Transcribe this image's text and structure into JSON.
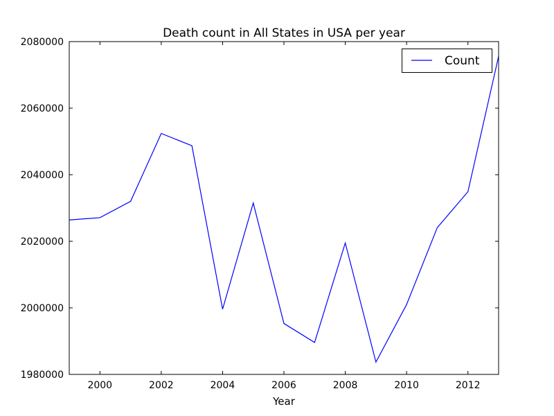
{
  "chart_data": {
    "type": "line",
    "title": "Death count in All States in USA per year",
    "xlabel": "Year",
    "ylabel": "",
    "xlim": [
      1999,
      2013
    ],
    "ylim": [
      1980000,
      2080000
    ],
    "xticks": [
      2000,
      2002,
      2004,
      2006,
      2008,
      2010,
      2012
    ],
    "xtick_labels": [
      "2000",
      "2002",
      "2004",
      "2006",
      "2008",
      "2010",
      "2012"
    ],
    "yticks": [
      1980000,
      2000000,
      2020000,
      2040000,
      2060000,
      2080000
    ],
    "ytick_labels": [
      "1980000",
      "2000000",
      "2020000",
      "2040000",
      "2060000",
      "2080000"
    ],
    "legend_position": "top-right",
    "grid": false,
    "series": [
      {
        "name": "Count",
        "color": "#0000ff",
        "x": [
          1999,
          2000,
          2001,
          2002,
          2003,
          2004,
          2005,
          2006,
          2007,
          2008,
          2009,
          2010,
          2011,
          2012,
          2013
        ],
        "y": [
          2026400,
          2027100,
          2032000,
          2052400,
          2048700,
          1999600,
          2031500,
          1995300,
          1989600,
          2019500,
          1983700,
          2001000,
          2024100,
          2034900,
          2075600
        ]
      }
    ]
  }
}
